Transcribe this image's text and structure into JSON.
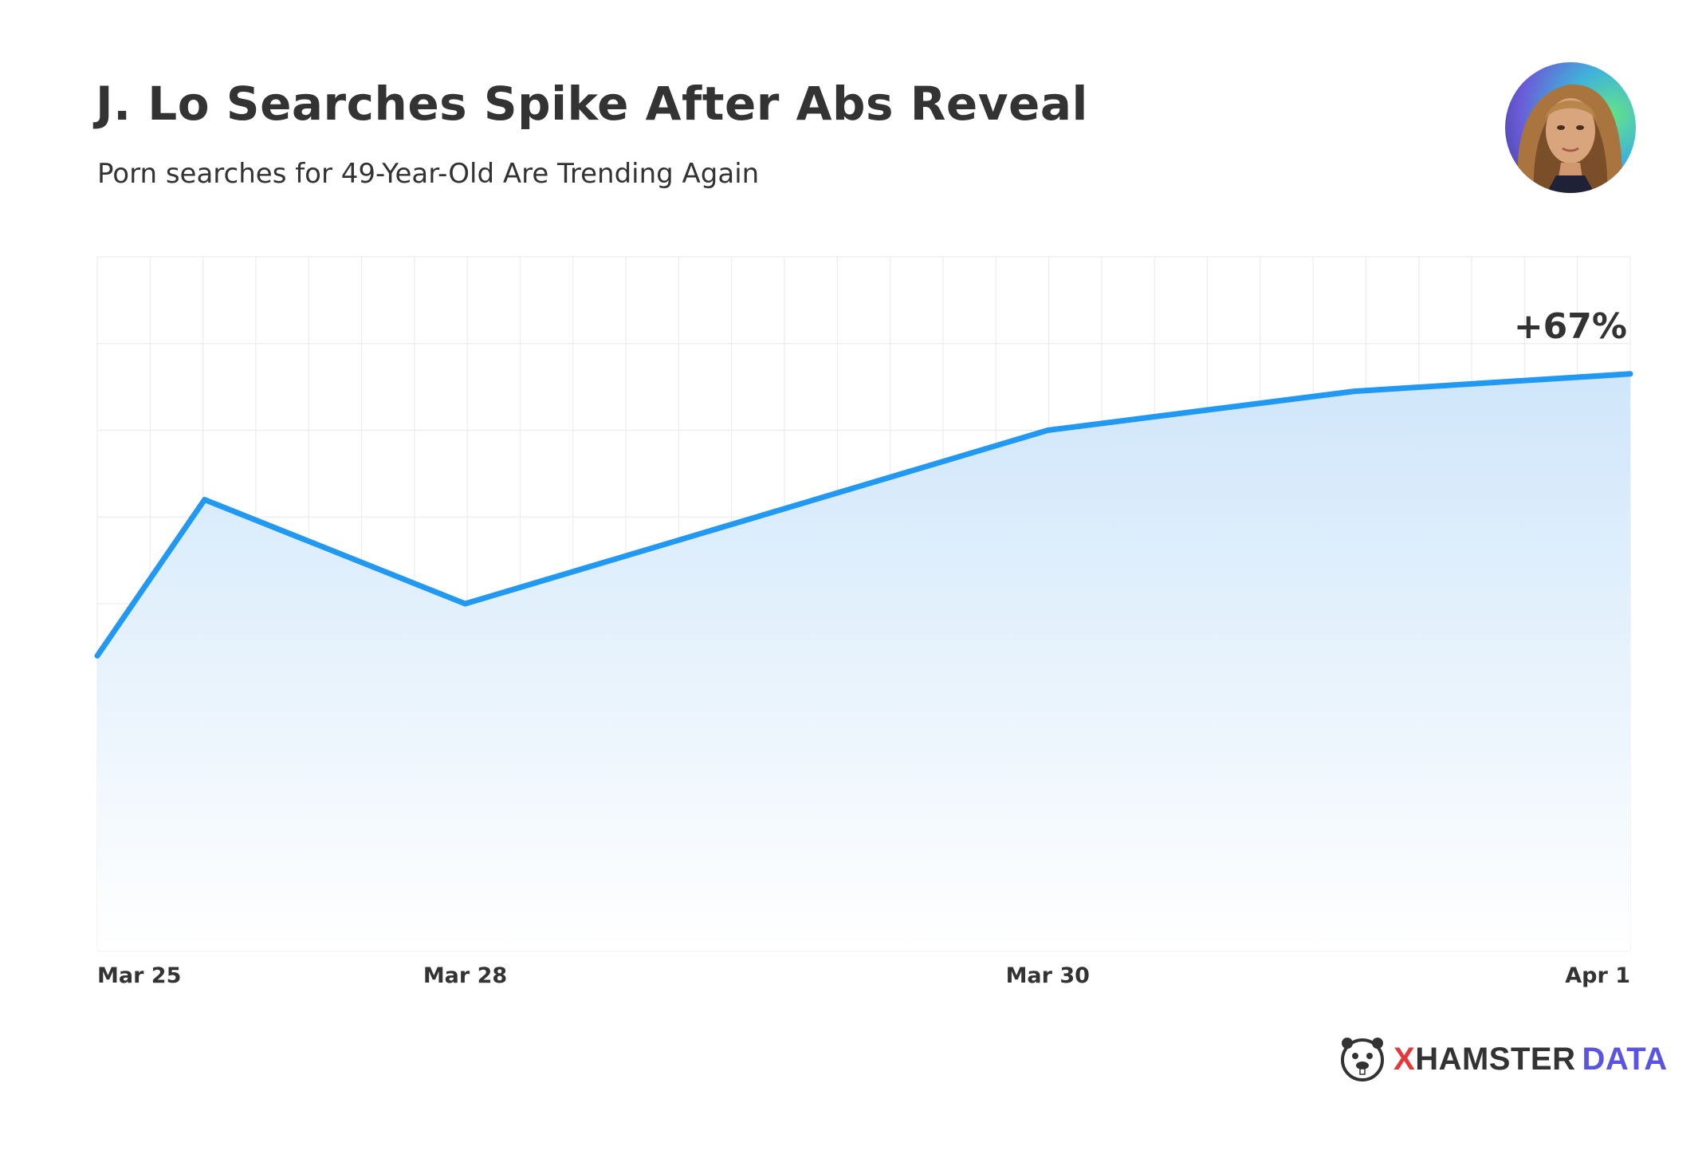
{
  "title": "J. Lo Searches Spike After Abs Reveal",
  "subtitle": "Porn searches for 49-Year-Old Are Trending Again",
  "brand": {
    "x": "X",
    "rest": "HAMSTER",
    "data": "DATA"
  },
  "colors": {
    "line": "#2199f3",
    "area_top": "#cfe6fa",
    "grid": "#ececec",
    "text": "#333333",
    "brand_red": "#e5383b",
    "brand_purple": "#5a55e0"
  },
  "chart_data": {
    "type": "area",
    "title": "J. Lo Searches Spike After Abs Reveal",
    "subtitle": "Porn searches for 49-Year-Old Are Trending Again",
    "x_tick_labels": [
      "Mar 25",
      "Mar 28",
      "Mar 30",
      "Apr 1"
    ],
    "x_tick_positions": [
      0,
      2.4,
      6.2,
      10
    ],
    "x": [
      0,
      0.7,
      2.4,
      6.2,
      8.2,
      10
    ],
    "values": [
      34,
      52,
      40,
      60,
      64.5,
      66.5
    ],
    "xlim": [
      0,
      10
    ],
    "ylim": [
      0,
      80
    ],
    "y_tick_labels_shown": false,
    "grid": true,
    "annotation": {
      "text": "+67%",
      "x": 10
    },
    "legend": "none"
  }
}
